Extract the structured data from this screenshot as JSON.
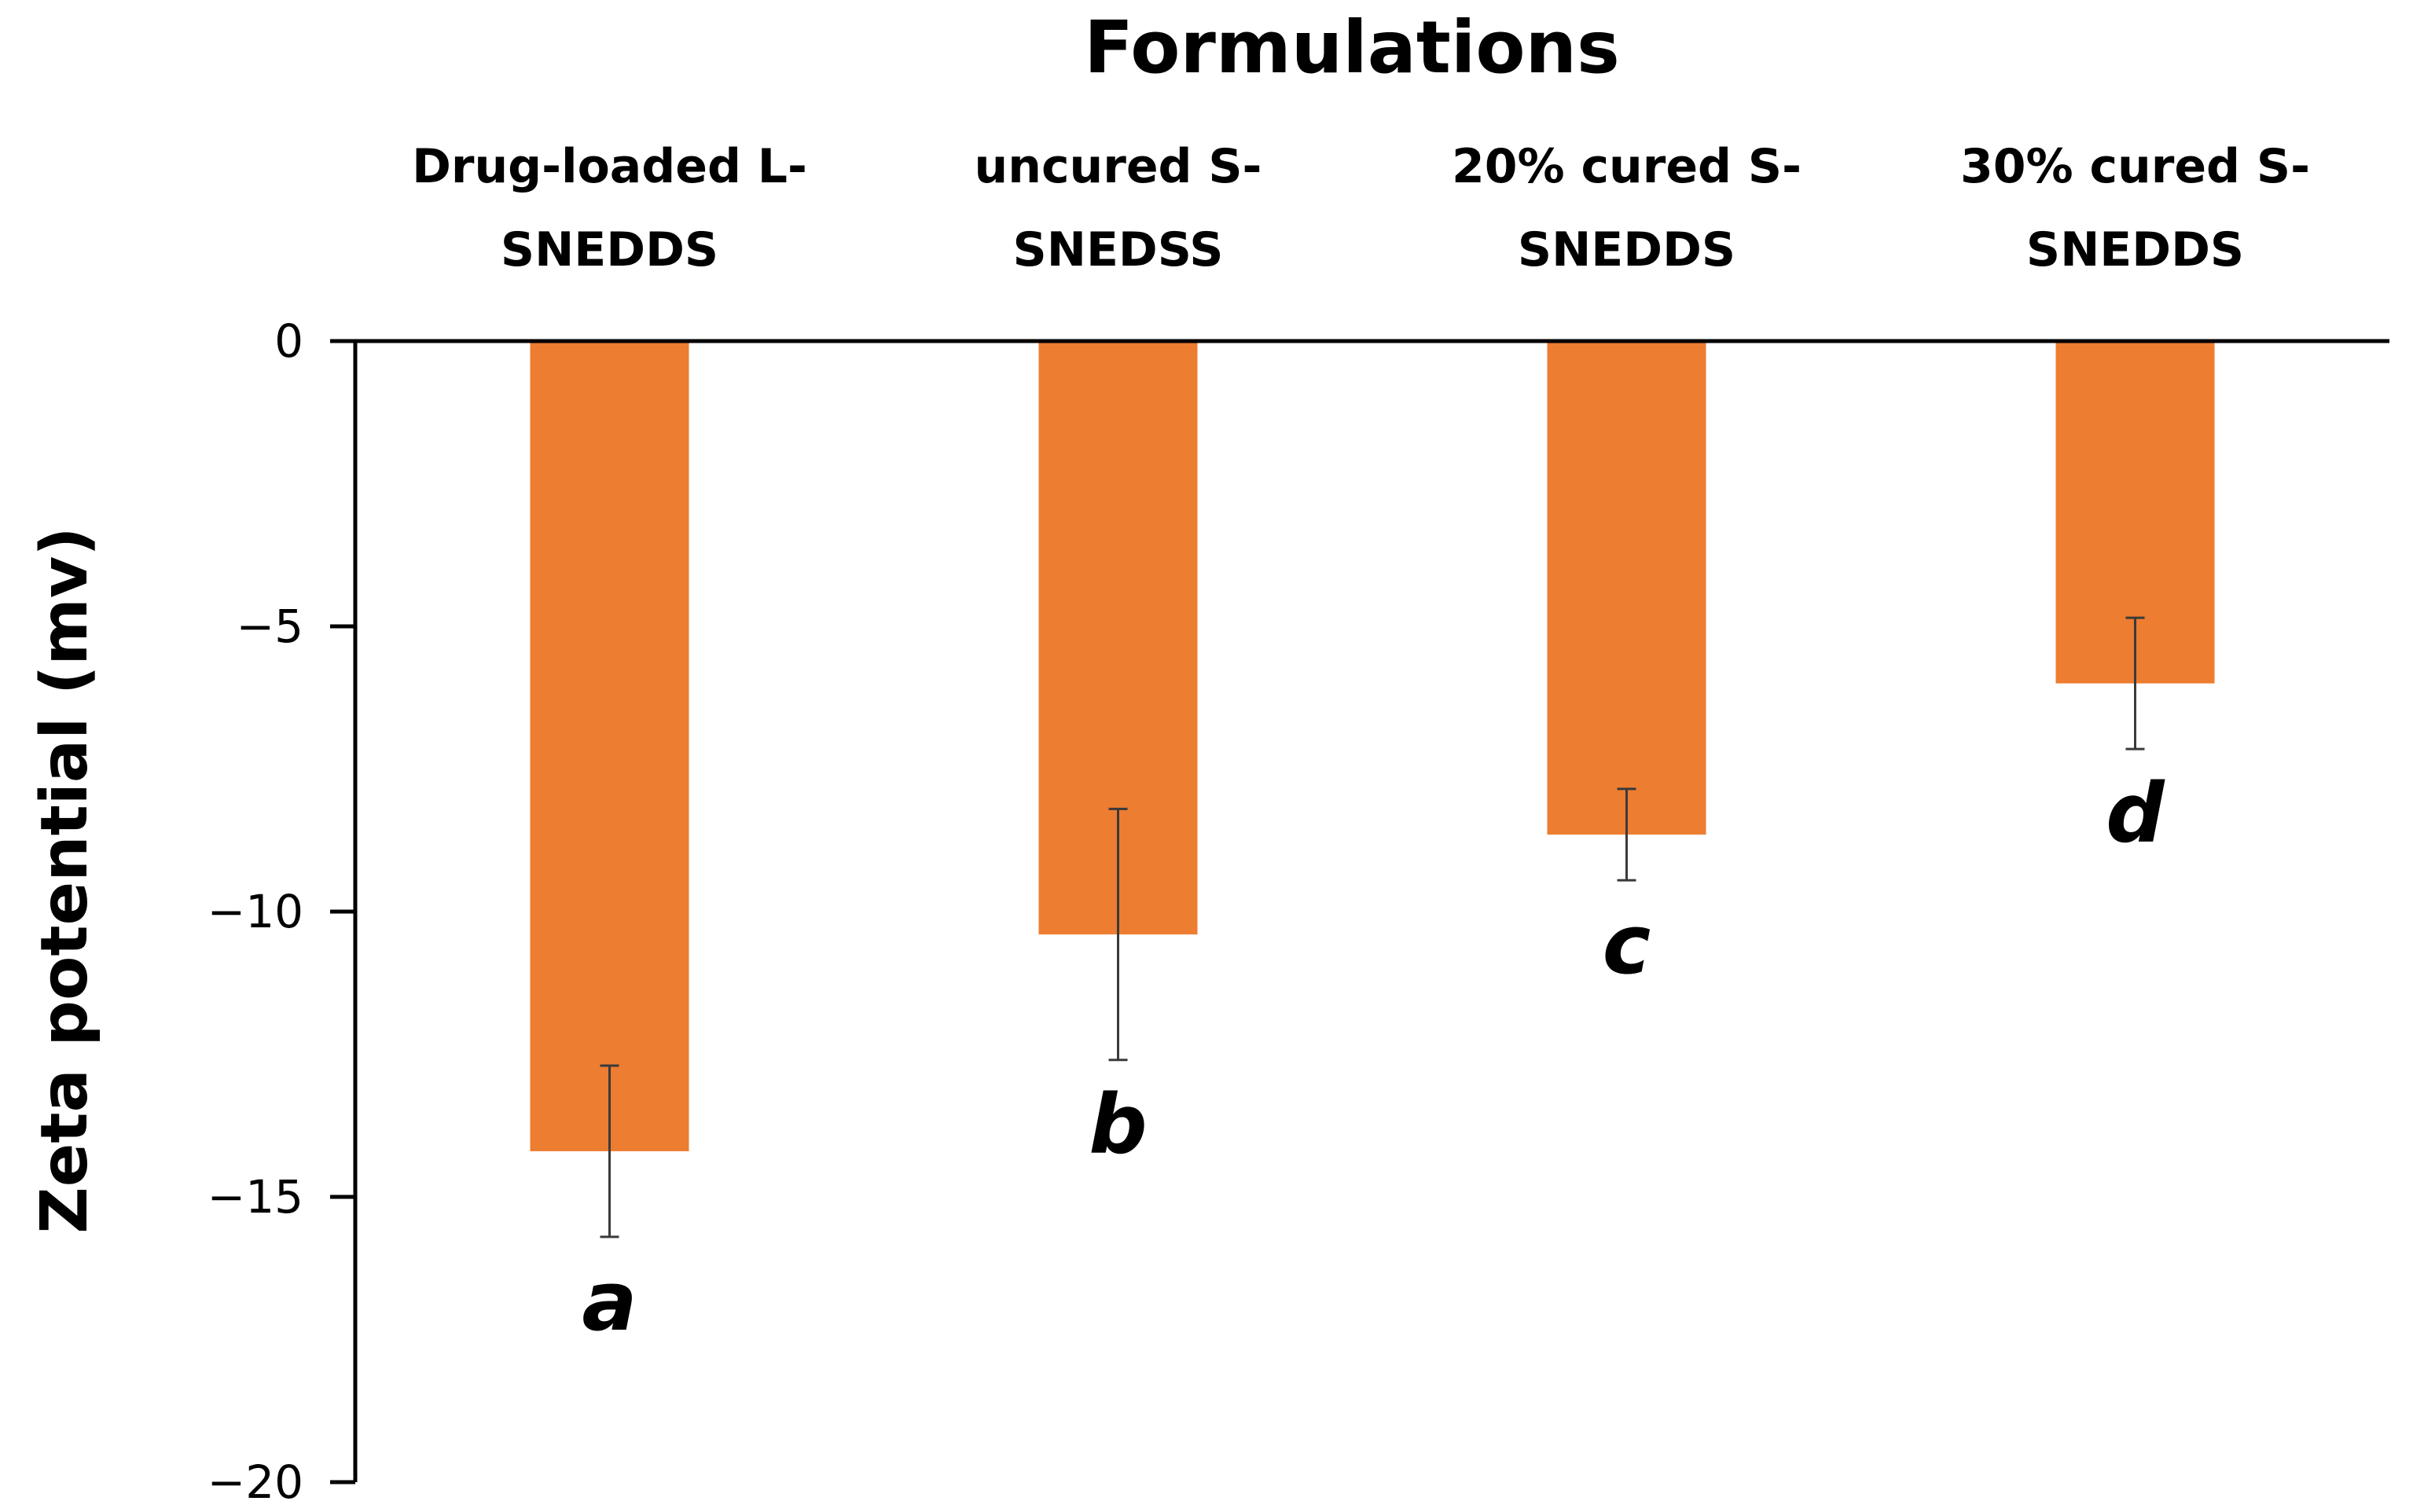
{
  "chart_data": {
    "type": "bar",
    "title": "Formulations",
    "xlabel": "Formulations",
    "ylabel": "Zeta potential (mv)",
    "ylim": [
      -20,
      0
    ],
    "yticks": [
      0,
      -5,
      -10,
      -15,
      -20
    ],
    "ytick_labels": [
      "0",
      "−5",
      "−10",
      "−15",
      "−20"
    ],
    "categories": [
      [
        "Drug-loaded L-",
        "SNEDDS"
      ],
      [
        "uncured S-",
        "SNEDSS"
      ],
      [
        "20% cured S-",
        "SNEDDS"
      ],
      [
        "30% cured S-",
        "SNEDDS"
      ]
    ],
    "values": [
      -14.2,
      -10.4,
      -8.65,
      -6.0
    ],
    "error": [
      1.5,
      2.2,
      0.8,
      1.15
    ],
    "significance_letters": [
      "a",
      "b",
      "c",
      "d"
    ],
    "bar_color": "#ED7D31",
    "axis_position": "top",
    "grid": false
  }
}
